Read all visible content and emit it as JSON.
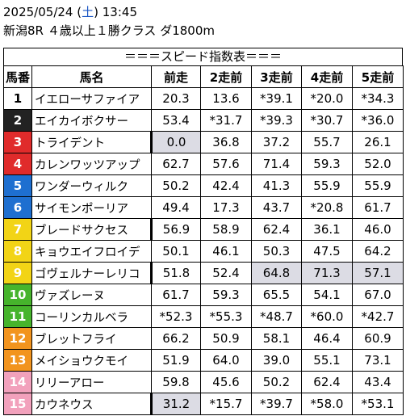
{
  "header": {
    "date": "2025/05/24",
    "day_prefix": "(",
    "day": "土",
    "day_suffix": ")",
    "time": "13:45",
    "race_info": "新潟8R ４歳以上１勝クラス ダ1800m"
  },
  "banner": "＝＝＝スピード指数表＝＝＝",
  "columns": [
    "馬番",
    "馬名",
    "前走",
    "2走前",
    "3走前",
    "4走前",
    "5走前"
  ],
  "colors": {
    "1": "#ffffff",
    "2": "#222222",
    "3": "#e02b2b",
    "4": "#e02b2b",
    "5": "#1e6fd0",
    "6": "#1e6fd0",
    "7": "#f2d416",
    "8": "#f2d416",
    "9": "#46b42c",
    "10": "#46b42c",
    "11": "#f2941e",
    "12": "#f2941e",
    "13": "#f2a1bc",
    "14": "#f2a1bc",
    "15": "#f2a1bc",
    "shade": "#dcdce4"
  },
  "rows": [
    {
      "num": "1",
      "name": "イエローサファイア",
      "v": [
        "20.3",
        "13.6",
        "*39.1",
        "*20.0",
        "*34.3"
      ],
      "bg": "#ffffff",
      "fg": "#000000",
      "shade": [],
      "lbar": []
    },
    {
      "num": "2",
      "name": "エイカイボクサー",
      "v": [
        "53.4",
        "*31.7",
        "*39.3",
        "*30.7",
        "*36.0"
      ],
      "bg": "#222222",
      "fg": "#ffffff",
      "shade": [],
      "lbar": []
    },
    {
      "num": "3",
      "name": "トライデント",
      "v": [
        "0.0",
        "36.8",
        "37.2",
        "55.7",
        "26.1"
      ],
      "bg": "#e02b2b",
      "fg": "#ffffff",
      "shade": [
        0
      ],
      "lbar": [
        0
      ]
    },
    {
      "num": "4",
      "name": "カレンワッツアップ",
      "v": [
        "62.7",
        "57.6",
        "71.4",
        "59.3",
        "52.0"
      ],
      "bg": "#e02b2b",
      "fg": "#ffffff",
      "shade": [],
      "lbar": []
    },
    {
      "num": "5",
      "name": "ワンダーウィルク",
      "v": [
        "50.2",
        "42.4",
        "41.3",
        "55.9",
        "55.9"
      ],
      "bg": "#1e6fd0",
      "fg": "#ffffff",
      "shade": [],
      "lbar": []
    },
    {
      "num": "6",
      "name": "サイモンポーリア",
      "v": [
        "49.4",
        "17.3",
        "43.7",
        "*20.8",
        "61.7"
      ],
      "bg": "#1e6fd0",
      "fg": "#ffffff",
      "shade": [],
      "lbar": []
    },
    {
      "num": "7",
      "name": "ブレードサクセス",
      "v": [
        "56.9",
        "58.9",
        "62.4",
        "36.1",
        "46.0"
      ],
      "bg": "#f2d416",
      "fg": "#ffffff",
      "shade": [],
      "lbar": [
        0
      ]
    },
    {
      "num": "8",
      "name": "キョウエイフロイデ",
      "v": [
        "50.1",
        "46.1",
        "50.3",
        "47.5",
        "64.2"
      ],
      "bg": "#f2d416",
      "fg": "#ffffff",
      "shade": [],
      "lbar": []
    },
    {
      "num": "9",
      "name": "ゴヴェルナーレリコ",
      "v": [
        "51.8",
        "52.4",
        "64.8",
        "71.3",
        "57.1"
      ],
      "bg": "#f2d416",
      "fg": "#ffffff",
      "shade": [
        2,
        3,
        4
      ],
      "lbar": [
        0
      ]
    },
    {
      "num": "10",
      "name": "ヴァズレーヌ",
      "v": [
        "61.7",
        "59.3",
        "65.5",
        "54.1",
        "67.0"
      ],
      "bg": "#46b42c",
      "fg": "#ffffff",
      "shade": [],
      "lbar": []
    },
    {
      "num": "11",
      "name": "コーリンカルベラ",
      "v": [
        "*52.3",
        "*55.3",
        "*48.7",
        "*60.0",
        "*42.7"
      ],
      "bg": "#46b42c",
      "fg": "#ffffff",
      "shade": [],
      "lbar": []
    },
    {
      "num": "12",
      "name": "ブレットフライ",
      "v": [
        "66.2",
        "50.9",
        "58.1",
        "46.4",
        "60.9"
      ],
      "bg": "#f2941e",
      "fg": "#ffffff",
      "shade": [],
      "lbar": []
    },
    {
      "num": "13",
      "name": "メイショウクモイ",
      "v": [
        "51.9",
        "64.0",
        "39.0",
        "55.1",
        "73.1"
      ],
      "bg": "#f2941e",
      "fg": "#ffffff",
      "shade": [],
      "lbar": []
    },
    {
      "num": "14",
      "name": "リリーアロー",
      "v": [
        "59.8",
        "45.6",
        "50.2",
        "62.4",
        "43.4"
      ],
      "bg": "#f2a1bc",
      "fg": "#ffffff",
      "shade": [],
      "lbar": []
    },
    {
      "num": "15",
      "name": "カウネウス",
      "v": [
        "31.2",
        "*15.7",
        "*39.7",
        "*58.0",
        "*53.1"
      ],
      "bg": "#f2a1bc",
      "fg": "#ffffff",
      "shade": [
        0
      ],
      "lbar": [
        0
      ]
    }
  ]
}
